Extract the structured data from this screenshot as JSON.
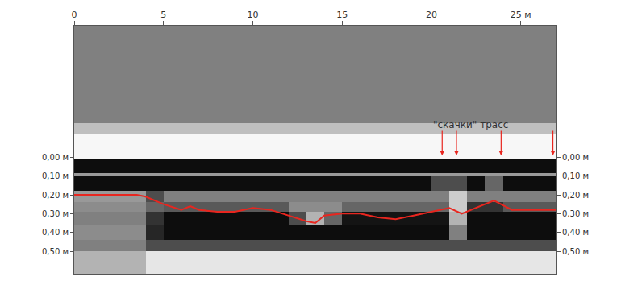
{
  "chart_data": {
    "type": "radargram",
    "xlim": [
      0,
      27
    ],
    "xticks": [
      0,
      5,
      10,
      15,
      20,
      {
        "value": 25,
        "label": "25 м"
      }
    ],
    "ylim": [
      0.62,
      -0.7
    ],
    "yticks": [
      {
        "value": 0,
        "label": "0,00 м"
      },
      {
        "value": 0.1,
        "label": "0,10 м"
      },
      {
        "value": 0.2,
        "label": "0,20 м"
      },
      {
        "value": 0.3,
        "label": "0,30 м"
      },
      {
        "value": 0.4,
        "label": "0,40 м"
      },
      {
        "value": 0.5,
        "label": "0,50 м"
      }
    ],
    "y2lim": [
      0.62,
      -0.7
    ],
    "y2ticks": [
      {
        "value": 0,
        "label": "0,00 м"
      },
      {
        "value": 0.1,
        "label": "0,10 м"
      },
      {
        "value": 0.2,
        "label": "0,20 м"
      },
      {
        "value": 0.3,
        "label": "0,30 м"
      },
      {
        "value": 0.4,
        "label": "0,40 м"
      },
      {
        "value": 0.5,
        "label": "0,50 м"
      }
    ],
    "cells": {
      "x_edges": [
        0,
        1,
        2,
        3,
        4,
        5,
        6,
        7,
        8,
        9,
        10,
        11,
        12,
        13,
        14,
        15,
        16,
        17,
        18,
        19,
        20,
        21,
        22,
        23,
        24,
        25,
        26,
        27
      ],
      "depth_edges": [
        -0.7,
        -0.18,
        -0.12,
        0.01,
        0.085,
        0.1,
        0.18,
        0.24,
        0.29,
        0.36,
        0.44,
        0.5,
        0.62
      ],
      "zlim": [
        0,
        1
      ],
      "z": [
        [
          0.5,
          0.5,
          0.5,
          0.5,
          0.5,
          0.5,
          0.5,
          0.5,
          0.5,
          0.5,
          0.5,
          0.5,
          0.5,
          0.5,
          0.5,
          0.5,
          0.5,
          0.5,
          0.5,
          0.5,
          0.5,
          0.5,
          0.5,
          0.5,
          0.5,
          0.5,
          0.5
        ],
        [
          0.75,
          0.75,
          0.75,
          0.75,
          0.75,
          0.75,
          0.75,
          0.75,
          0.75,
          0.75,
          0.75,
          0.75,
          0.75,
          0.75,
          0.75,
          0.75,
          0.75,
          0.75,
          0.75,
          0.75,
          0.75,
          0.75,
          0.75,
          0.75,
          0.75,
          0.75,
          0.75
        ],
        [
          0.97,
          0.97,
          0.97,
          0.97,
          0.97,
          0.97,
          0.97,
          0.97,
          0.97,
          0.97,
          0.97,
          0.97,
          0.97,
          0.97,
          0.97,
          0.97,
          0.97,
          0.97,
          0.97,
          0.97,
          0.97,
          0.97,
          0.97,
          0.97,
          0.97,
          0.97,
          0.97
        ],
        [
          0.05,
          0.05,
          0.05,
          0.05,
          0.05,
          0.05,
          0.05,
          0.05,
          0.05,
          0.05,
          0.05,
          0.05,
          0.05,
          0.05,
          0.05,
          0.05,
          0.05,
          0.05,
          0.05,
          0.05,
          0.05,
          0.05,
          0.05,
          0.05,
          0.05,
          0.05,
          0.05
        ],
        [
          0.6,
          0.6,
          0.6,
          0.6,
          0.6,
          0.6,
          0.6,
          0.6,
          0.6,
          0.6,
          0.6,
          0.6,
          0.6,
          0.6,
          0.6,
          0.6,
          0.6,
          0.6,
          0.6,
          0.6,
          0.6,
          0.6,
          0.6,
          0.6,
          0.6,
          0.6,
          0.6
        ],
        [
          0.05,
          0.05,
          0.05,
          0.05,
          0.05,
          0.05,
          0.05,
          0.05,
          0.05,
          0.05,
          0.05,
          0.05,
          0.05,
          0.05,
          0.05,
          0.05,
          0.05,
          0.05,
          0.05,
          0.05,
          0.3,
          0.3,
          0.05,
          0.4,
          0.05,
          0.05,
          0.05
        ],
        [
          0.6,
          0.6,
          0.6,
          0.6,
          0.3,
          0.5,
          0.5,
          0.5,
          0.5,
          0.5,
          0.5,
          0.5,
          0.5,
          0.5,
          0.5,
          0.5,
          0.5,
          0.5,
          0.5,
          0.5,
          0.5,
          0.8,
          0.5,
          0.5,
          0.5,
          0.5,
          0.5
        ],
        [
          0.55,
          0.55,
          0.55,
          0.55,
          0.4,
          0.35,
          0.35,
          0.35,
          0.35,
          0.35,
          0.35,
          0.35,
          0.55,
          0.55,
          0.55,
          0.4,
          0.4,
          0.4,
          0.4,
          0.4,
          0.4,
          0.8,
          0.2,
          0.2,
          0.35,
          0.35,
          0.35
        ],
        [
          0.5,
          0.5,
          0.5,
          0.5,
          0.2,
          0.05,
          0.05,
          0.05,
          0.05,
          0.05,
          0.05,
          0.05,
          0.3,
          0.7,
          0.4,
          0.08,
          0.08,
          0.08,
          0.08,
          0.08,
          0.08,
          0.7,
          0.05,
          0.05,
          0.05,
          0.05,
          0.05
        ],
        [
          0.55,
          0.55,
          0.55,
          0.55,
          0.15,
          0.05,
          0.05,
          0.05,
          0.05,
          0.05,
          0.05,
          0.05,
          0.05,
          0.05,
          0.05,
          0.05,
          0.05,
          0.05,
          0.05,
          0.05,
          0.05,
          0.5,
          0.05,
          0.05,
          0.05,
          0.05,
          0.05
        ],
        [
          0.5,
          0.5,
          0.5,
          0.5,
          0.3,
          0.3,
          0.3,
          0.3,
          0.3,
          0.3,
          0.3,
          0.3,
          0.3,
          0.3,
          0.3,
          0.3,
          0.3,
          0.3,
          0.3,
          0.3,
          0.3,
          0.3,
          0.3,
          0.3,
          0.3,
          0.3,
          0.3
        ],
        [
          0.7,
          0.7,
          0.7,
          0.7,
          0.9,
          0.9,
          0.9,
          0.9,
          0.9,
          0.9,
          0.9,
          0.9,
          0.9,
          0.9,
          0.9,
          0.9,
          0.9,
          0.9,
          0.9,
          0.9,
          0.9,
          0.9,
          0.9,
          0.9,
          0.9,
          0.9,
          0.9
        ]
      ]
    },
    "series": [
      {
        "color": "#e8261f",
        "x": [
          0,
          2,
          3.5,
          4,
          5,
          6,
          6.5,
          7,
          8,
          9,
          10,
          11,
          12,
          13,
          13.5,
          14,
          15,
          16,
          17,
          18,
          19,
          20,
          21,
          21.7,
          22.5,
          23.5,
          24.5,
          25.5,
          27
        ],
        "values": [
          0.2,
          0.2,
          0.2,
          0.21,
          0.25,
          0.28,
          0.26,
          0.28,
          0.29,
          0.29,
          0.27,
          0.28,
          0.31,
          0.34,
          0.35,
          0.31,
          0.3,
          0.3,
          0.32,
          0.33,
          0.31,
          0.29,
          0.27,
          0.3,
          0.27,
          0.23,
          0.28,
          0.28,
          0.28
        ]
      }
    ],
    "annotations": [
      {
        "text": "\"скачки\" трасс",
        "x": 22.2,
        "y": -0.175,
        "color": "#e8261f",
        "arrows_x": [
          20.6,
          21.4,
          23.9,
          26.8
        ],
        "arrows_y": -0.01
      }
    ]
  }
}
